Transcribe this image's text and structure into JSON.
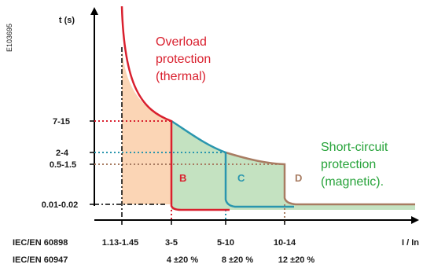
{
  "figure_id": "E103695",
  "y_axis_label": "t (s)",
  "x_axis_label": "I / In",
  "y_ticks": [
    "7-15",
    "2-4",
    "0.5-1.5",
    "0.01-0.02"
  ],
  "standards": {
    "row1_name": "IEC/EN 60898",
    "row1_values": [
      "1.13-1.45",
      "3-5",
      "5-10",
      "10-14"
    ],
    "row2_name": "IEC/EN 60947",
    "row2_values": [
      "4 ±20 %",
      "8 ±20 %",
      "12 ±20 %"
    ]
  },
  "zones": {
    "overload": [
      "Overload",
      "protection",
      "(thermal)"
    ],
    "short_circuit": [
      "Short-circuit",
      "protection",
      "(magnetic)."
    ]
  },
  "curves": {
    "B": {
      "label": "B",
      "color": "#d9202e"
    },
    "C": {
      "label": "C",
      "color": "#2a96ae"
    },
    "D": {
      "label": "D",
      "color": "#a87c62"
    }
  },
  "colors": {
    "thermal_zone": "#fbd5b5",
    "magnetic_zone": "#c4e2c1",
    "overload_text": "#d9202e",
    "short_circuit_text": "#27a33a"
  }
}
